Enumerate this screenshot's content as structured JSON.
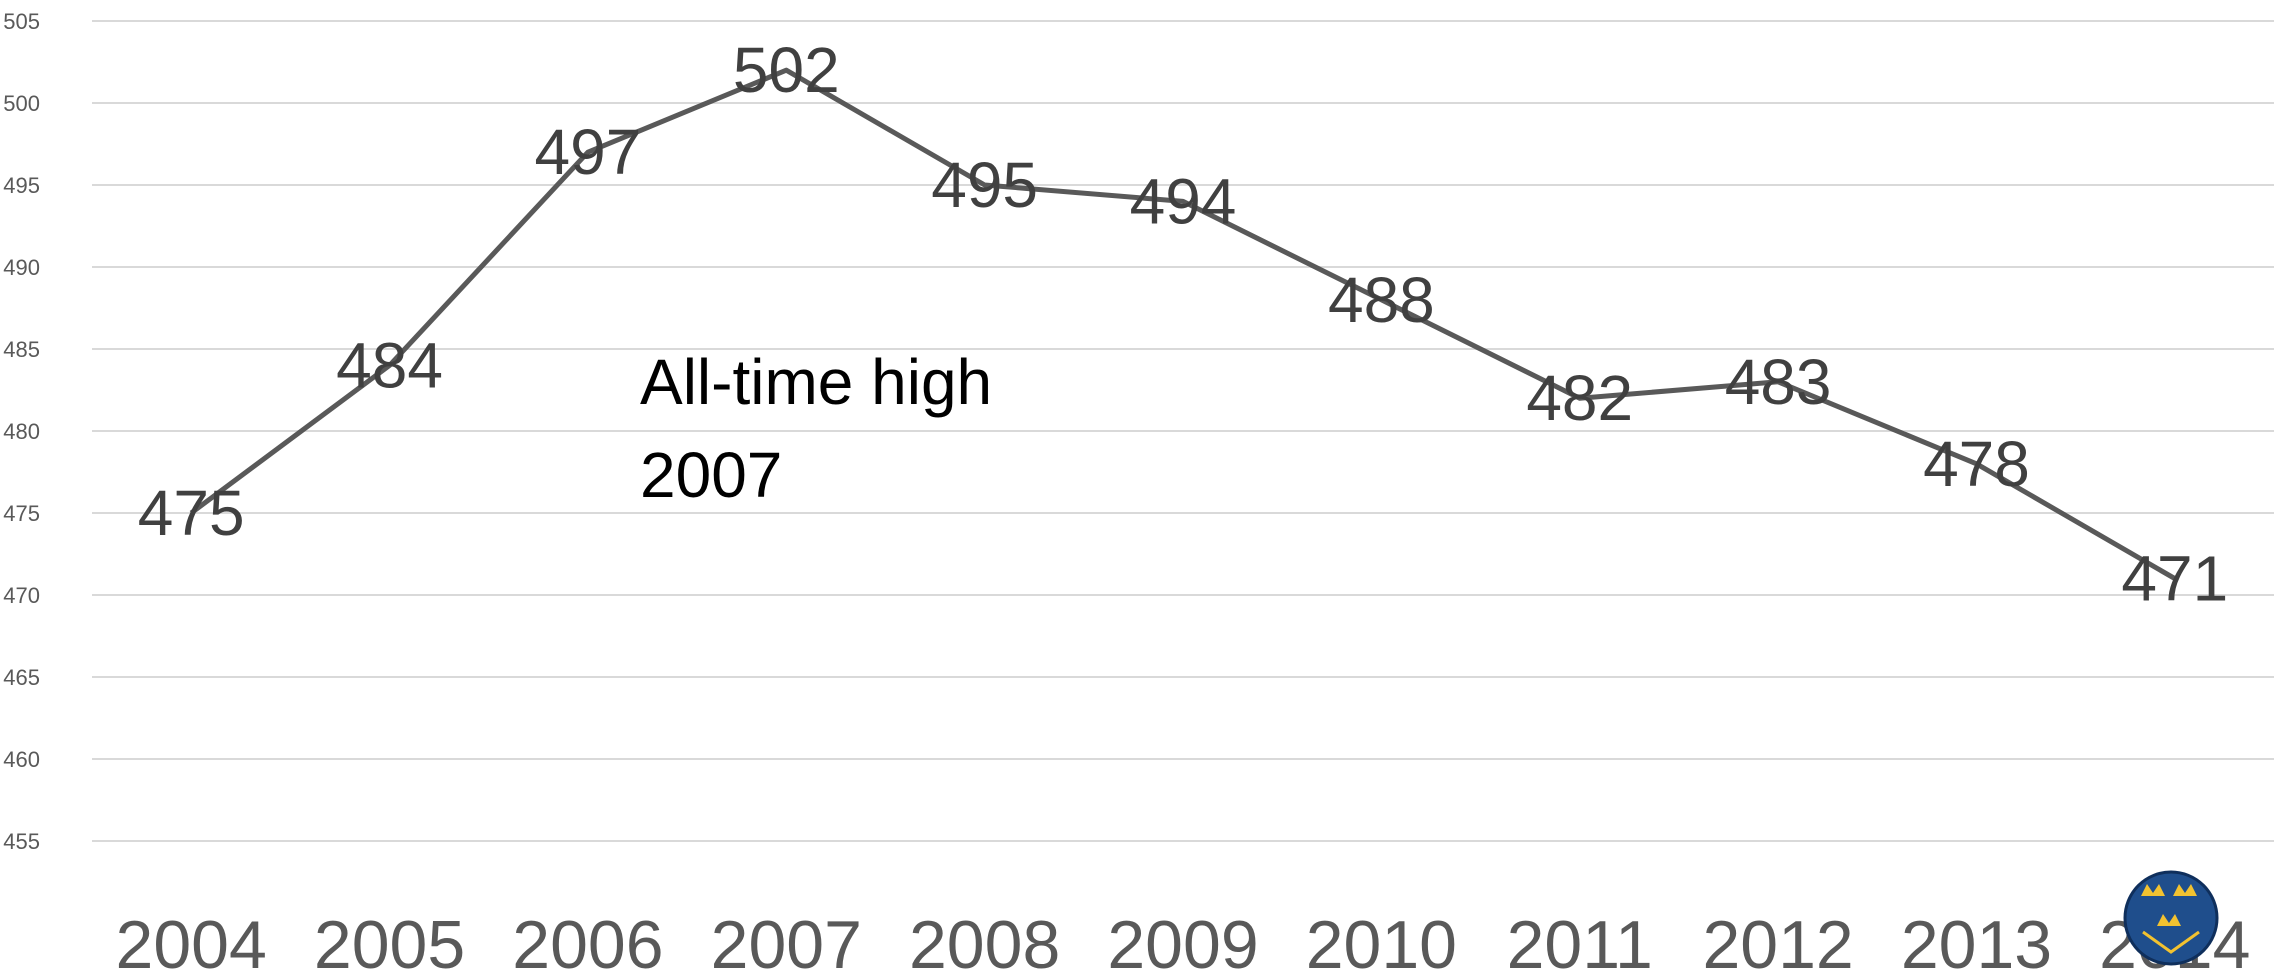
{
  "chart_data": {
    "type": "line",
    "categories": [
      "2004",
      "2005",
      "2006",
      "2007",
      "2008",
      "2009",
      "2010",
      "2011",
      "2012",
      "2013",
      "2014"
    ],
    "values": [
      475,
      484,
      497,
      502,
      495,
      494,
      488,
      482,
      483,
      478,
      471
    ],
    "ylim": [
      455,
      505
    ],
    "yticks": [
      455,
      460,
      465,
      470,
      475,
      480,
      485,
      490,
      495,
      500,
      505
    ],
    "grid": true,
    "legend": "none",
    "annotation": [
      "All-time high",
      "2007"
    ],
    "colors": {
      "line": "#595959",
      "grid": "#d9d9d9",
      "logo_blue": "#1f4e8c",
      "logo_gold": "#f2c230"
    }
  },
  "logo": {
    "name": "three-crowns-emblem"
  }
}
